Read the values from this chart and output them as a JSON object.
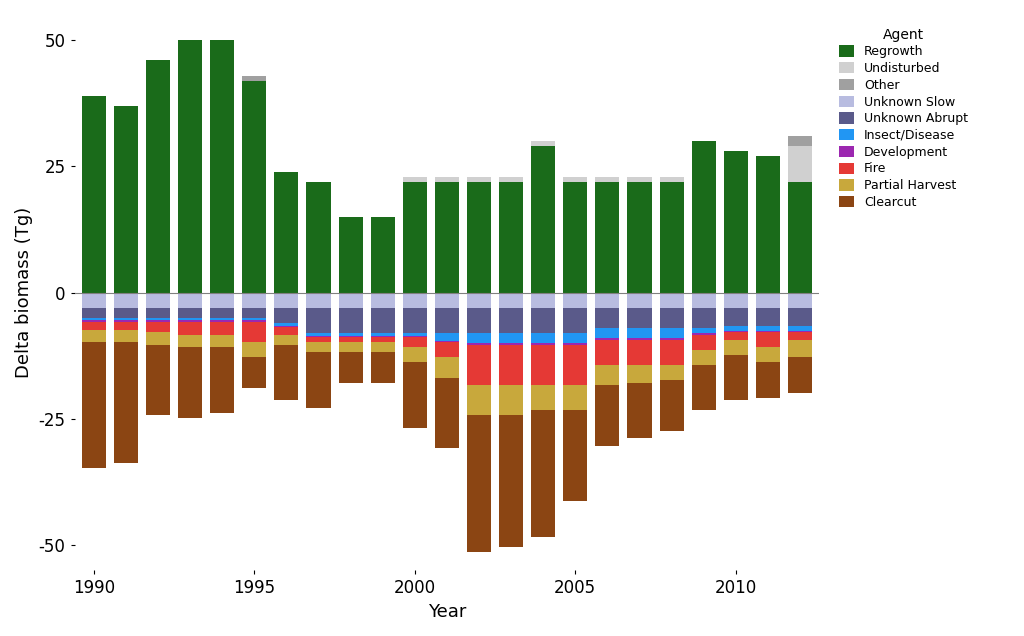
{
  "years": [
    1990,
    1991,
    1992,
    1993,
    1994,
    1995,
    1996,
    1997,
    1998,
    1999,
    2000,
    2001,
    2002,
    2003,
    2004,
    2005,
    2006,
    2007,
    2008,
    2009,
    2010,
    2011,
    2012
  ],
  "positive_components": {
    "Regrowth": [
      39,
      37,
      46,
      50,
      50,
      42,
      24,
      22,
      15,
      15,
      22,
      22,
      22,
      22,
      29,
      22,
      22,
      22,
      22,
      30,
      28,
      27,
      22
    ],
    "Undisturbed": [
      0,
      0,
      0,
      0,
      0,
      0,
      0,
      0,
      0,
      0,
      1,
      1,
      1,
      1,
      1,
      1,
      1,
      1,
      1,
      0,
      0,
      0,
      7
    ],
    "Other": [
      0,
      0,
      0,
      0,
      0,
      1,
      0,
      0,
      0,
      0,
      0,
      0,
      0,
      0,
      0,
      0,
      0,
      0,
      0,
      0,
      0,
      0,
      2
    ]
  },
  "negative_components": {
    "Unknown Slow": [
      3.0,
      3.0,
      3.0,
      3.0,
      3.0,
      3.0,
      3.0,
      3.0,
      3.0,
      3.0,
      3.0,
      3.0,
      3.0,
      3.0,
      3.0,
      3.0,
      3.0,
      3.0,
      3.0,
      3.0,
      3.0,
      3.0,
      3.0
    ],
    "Unknown Abrupt": [
      2.0,
      2.0,
      2.0,
      2.0,
      2.0,
      2.0,
      3.0,
      5.0,
      5.0,
      5.0,
      5.0,
      5.0,
      5.0,
      5.0,
      5.0,
      5.0,
      4.0,
      4.0,
      4.0,
      4.0,
      3.5,
      3.5,
      3.5
    ],
    "Insect/Disease": [
      0.5,
      0.5,
      0.5,
      0.5,
      0.5,
      0.5,
      0.5,
      0.5,
      0.5,
      0.5,
      0.5,
      1.5,
      2.0,
      2.0,
      2.0,
      2.0,
      2.0,
      2.0,
      2.0,
      1.0,
      1.0,
      1.0,
      1.0
    ],
    "Development": [
      0.3,
      0.3,
      0.3,
      0.3,
      0.3,
      0.3,
      0.3,
      0.3,
      0.3,
      0.3,
      0.3,
      0.3,
      0.3,
      0.3,
      0.3,
      0.3,
      0.3,
      0.3,
      0.3,
      0.3,
      0.3,
      0.3,
      0.3
    ],
    "Fire": [
      1.5,
      1.5,
      2.0,
      2.5,
      2.5,
      4.0,
      1.5,
      1.0,
      1.0,
      1.0,
      2.0,
      3.0,
      8.0,
      8.0,
      8.0,
      8.0,
      5.0,
      5.0,
      5.0,
      3.0,
      1.5,
      3.0,
      1.5
    ],
    "Partial Harvest": [
      2.5,
      2.5,
      2.5,
      2.5,
      2.5,
      3.0,
      2.0,
      2.0,
      2.0,
      2.0,
      3.0,
      4.0,
      6.0,
      6.0,
      5.0,
      5.0,
      4.0,
      3.5,
      3.0,
      3.0,
      3.0,
      3.0,
      3.5
    ],
    "Clearcut": [
      25,
      24,
      14,
      14,
      13,
      6,
      11,
      11,
      6,
      6,
      13,
      14,
      27,
      26,
      25,
      18,
      12,
      11,
      10,
      9,
      9,
      7,
      7
    ]
  },
  "colors": {
    "Regrowth": "#1a6b1a",
    "Undisturbed": "#d0d0d0",
    "Other": "#a0a0a0",
    "Unknown Slow": "#b8bce0",
    "Unknown Abrupt": "#5a5a8a",
    "Insect/Disease": "#2196F3",
    "Development": "#9c27b0",
    "Fire": "#e53935",
    "Partial Harvest": "#c8a83c",
    "Clearcut": "#8B4513"
  },
  "xlabel": "Year",
  "ylabel": "Delta biomass (Tg)",
  "ylim": [
    -55,
    55
  ],
  "yticks": [
    -50,
    -25,
    0,
    25,
    50
  ],
  "legend_title": "Agent",
  "legend_order": [
    "Regrowth",
    "Undisturbed",
    "Other",
    "Unknown Slow",
    "Unknown Abrupt",
    "Insect/Disease",
    "Development",
    "Fire",
    "Partial Harvest",
    "Clearcut"
  ],
  "background_color": "#ffffff"
}
